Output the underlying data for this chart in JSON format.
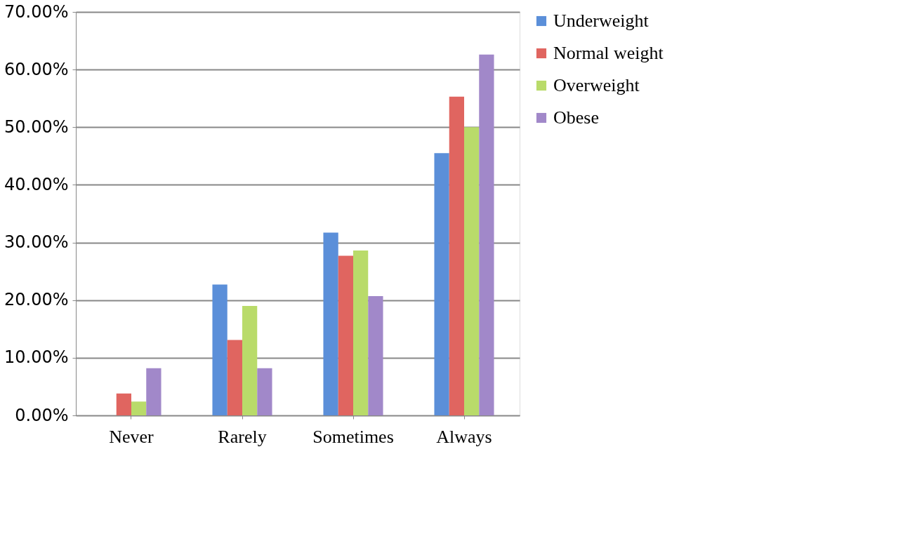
{
  "chart_data": {
    "type": "bar",
    "categories": [
      "Never",
      "Rarely",
      "Sometimes",
      "Always"
    ],
    "series": [
      {
        "name": "Underweight",
        "color": "#5b8fd9",
        "values": [
          0,
          22.7,
          31.7,
          45.5
        ]
      },
      {
        "name": "Normal weight",
        "color": "#e06560",
        "values": [
          3.8,
          13.1,
          27.7,
          55.3
        ]
      },
      {
        "name": "Overweight",
        "color": "#b9db6a",
        "values": [
          2.4,
          19.0,
          28.6,
          50.0
        ]
      },
      {
        "name": "Obese",
        "color": "#a188c9",
        "values": [
          8.2,
          8.2,
          20.7,
          62.6
        ]
      }
    ],
    "ylim": [
      0,
      70
    ],
    "yticks": [
      {
        "value": 0,
        "label": "0.00%"
      },
      {
        "value": 10,
        "label": "10.00%"
      },
      {
        "value": 20,
        "label": "20.00%"
      },
      {
        "value": 30,
        "label": "30.00%"
      },
      {
        "value": 40,
        "label": "40.00%"
      },
      {
        "value": 50,
        "label": "50.00%"
      },
      {
        "value": 60,
        "label": "60.00%"
      },
      {
        "value": 70,
        "label": "70.00%"
      }
    ],
    "grid": "y",
    "legend": "right"
  }
}
